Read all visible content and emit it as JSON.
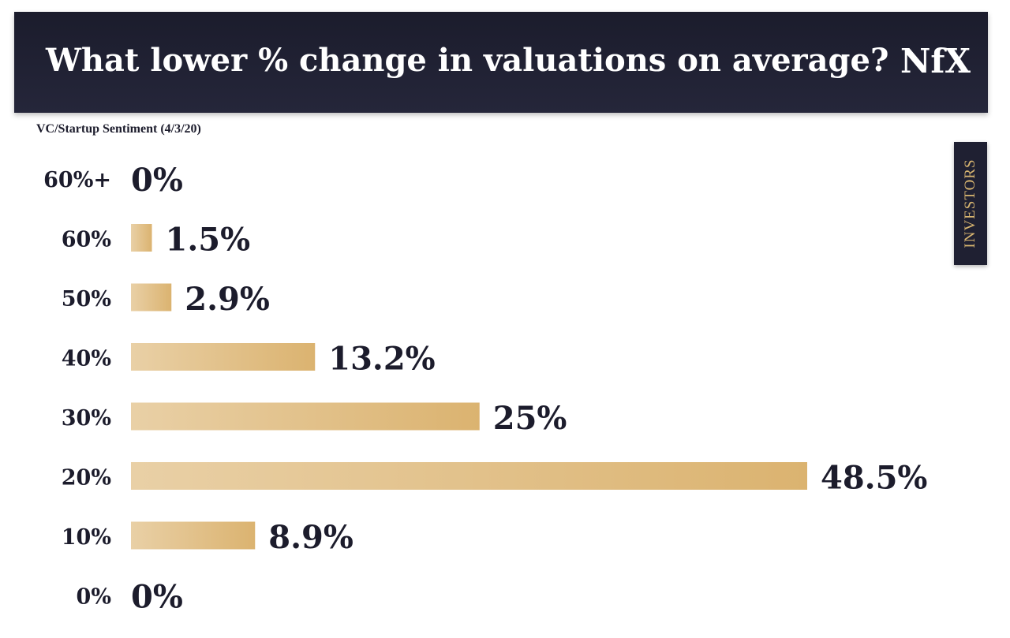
{
  "header": {
    "title": "What lower % change in valuations on average?",
    "logo": "NfX"
  },
  "subtitle": "VC/Startup Sentiment (4/3/20)",
  "side_tab": {
    "label": "INVESTORS"
  },
  "colors": {
    "header_bg": "#1b1c2c",
    "bar_start": "#e9d0a6",
    "bar_end": "#dbb370",
    "text": "#1c1c2c",
    "tab_text": "#d8b570"
  },
  "chart_data": {
    "type": "bar",
    "orientation": "horizontal",
    "categories": [
      "60%+",
      "60%",
      "50%",
      "40%",
      "30%",
      "20%",
      "10%",
      "0%"
    ],
    "values": [
      0,
      1.5,
      2.9,
      13.2,
      25,
      48.5,
      8.9,
      0
    ],
    "value_labels": [
      "0%",
      "1.5%",
      "2.9%",
      "13.2%",
      "25%",
      "48.5%",
      "8.9%",
      "0%"
    ],
    "xlim": [
      0,
      48.5
    ],
    "grid": false,
    "legend": "none"
  }
}
